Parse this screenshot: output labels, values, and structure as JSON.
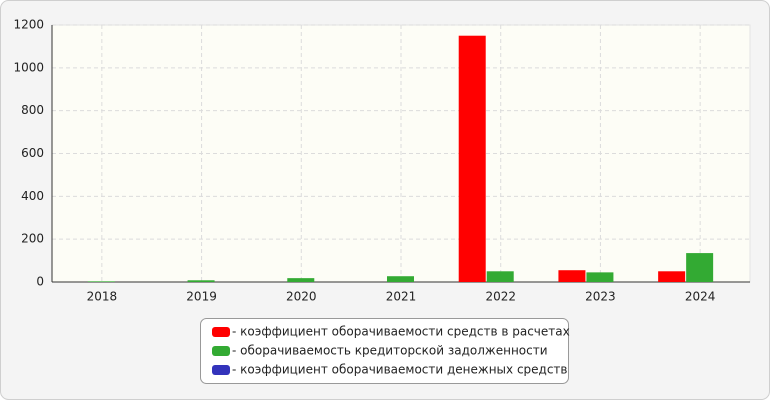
{
  "chart_data": {
    "type": "bar",
    "categories": [
      "2018",
      "2019",
      "2020",
      "2021",
      "2022",
      "2023",
      "2024"
    ],
    "series": [
      {
        "name": "- коэффициент оборачиваемости средств в расчетах",
        "color": "#ff0000",
        "values": [
          0,
          0,
          0,
          0,
          1150,
          55,
          50
        ]
      },
      {
        "name": "- оборачиваемость кредиторской задолженности",
        "color": "#33aa33",
        "values": [
          3,
          8,
          18,
          27,
          50,
          45,
          135
        ]
      },
      {
        "name": "- коэффициент оборачиваемости денежных средств",
        "color": "#3333bb",
        "values": [
          0,
          0,
          0,
          0,
          0,
          0,
          0
        ]
      }
    ],
    "ylim": [
      0,
      1200
    ],
    "yticks": [
      0,
      200,
      400,
      600,
      800,
      1000,
      1200
    ],
    "grid": true
  }
}
